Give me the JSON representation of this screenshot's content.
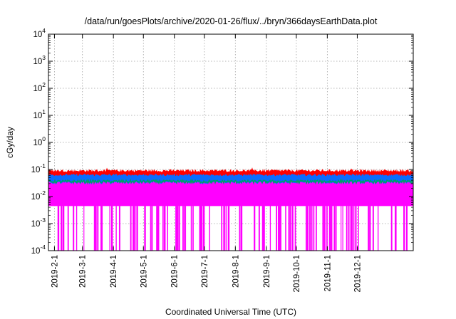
{
  "chart_data": {
    "type": "area",
    "title": "/data/run/goesPlots/archive/2020-01-26/flux/../bryn/366daysEarthData.plot",
    "xlabel": "Coordinated Universal Time (UTC)",
    "ylabel": "cGy/day",
    "y_scale": "log",
    "ylim": [
      0.0001,
      10000
    ],
    "y_ticks": [
      {
        "value": 0.0001,
        "base": "10",
        "exp": "-4"
      },
      {
        "value": 0.001,
        "base": "10",
        "exp": "-3"
      },
      {
        "value": 0.01,
        "base": "10",
        "exp": "-2"
      },
      {
        "value": 0.1,
        "base": "10",
        "exp": "-1"
      },
      {
        "value": 1,
        "base": "10",
        "exp": "0"
      },
      {
        "value": 10,
        "base": "10",
        "exp": "1"
      },
      {
        "value": 100,
        "base": "10",
        "exp": "2"
      },
      {
        "value": 1000,
        "base": "10",
        "exp": "3"
      },
      {
        "value": 10000,
        "base": "10",
        "exp": "4"
      }
    ],
    "x_range": [
      "2019-01-26",
      "2020-01-26"
    ],
    "x_ticks": [
      "2019-2-1",
      "2019-3-1",
      "2019-4-1",
      "2019-5-1",
      "2019-6-1",
      "2019-7-1",
      "2019-8-1",
      "2019-9-1",
      "2019-10-1",
      "2019-11-1",
      "2019-12-1"
    ],
    "x_tick_dates": [
      "2019-02-01",
      "2019-03-01",
      "2019-04-01",
      "2019-05-01",
      "2019-06-01",
      "2019-07-01",
      "2019-08-01",
      "2019-09-01",
      "2019-10-01",
      "2019-11-01",
      "2019-12-01"
    ],
    "grid": true,
    "series": [
      {
        "color": "#ff0000",
        "typical_level": 0.085,
        "min": 0.07,
        "max": 0.12
      },
      {
        "color": "#0a6cff",
        "typical_level": 0.062,
        "min": 0.05,
        "max": 0.085
      },
      {
        "color": "#00a060",
        "typical_level": 0.035,
        "min": 0.03,
        "max": 0.045
      },
      {
        "color": "#ff00ff",
        "typical_level": 0.025,
        "min": 0.0001,
        "max": 0.06
      }
    ]
  }
}
